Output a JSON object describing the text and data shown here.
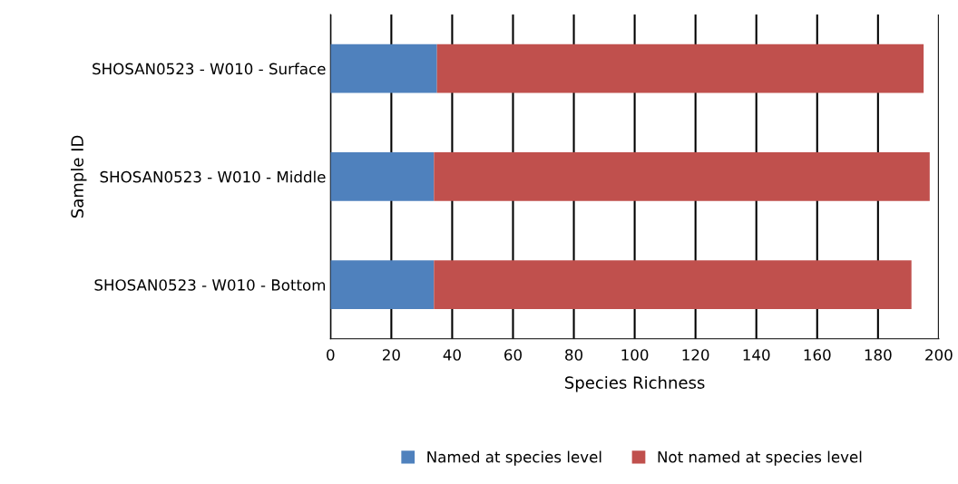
{
  "chart_data": {
    "type": "bar",
    "orientation": "horizontal",
    "stacked": true,
    "categories": [
      "SHOSAN0523 - W010 - Surface",
      "SHOSAN0523 - W010 - Middle",
      "SHOSAN0523 - W010 - Bottom"
    ],
    "series": [
      {
        "name": "Named at species level",
        "color": "#4f81bd",
        "values": [
          35,
          34,
          34
        ]
      },
      {
        "name": "Not named at species level",
        "color": "#c0504d",
        "values": [
          160,
          163,
          157
        ]
      }
    ],
    "xlabel": "Species Richness",
    "ylabel": "Sample ID",
    "xlim": [
      0,
      200
    ],
    "xticks": [
      0,
      20,
      40,
      60,
      80,
      100,
      120,
      140,
      160,
      180,
      200
    ],
    "grid": "x",
    "legend": "bottom"
  }
}
